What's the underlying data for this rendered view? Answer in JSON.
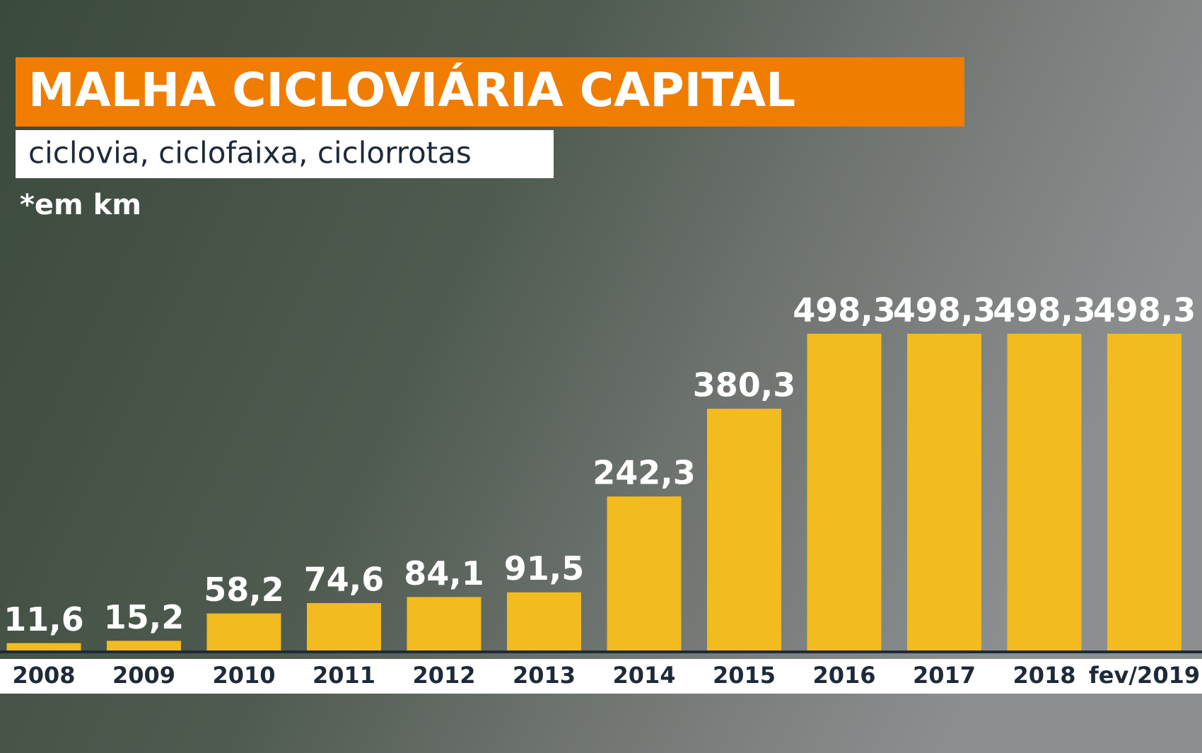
{
  "chart_data": {
    "type": "bar",
    "title": "MALHA CICLOVIÁRIA CAPITAL",
    "subtitle": "ciclovia, ciclofaixa, ciclorrotas",
    "note": "*em km",
    "categories": [
      "2008",
      "2009",
      "2010",
      "2011",
      "2012",
      "2013",
      "2014",
      "2015",
      "2016",
      "2017",
      "2018",
      "fev/2019"
    ],
    "values": [
      11.6,
      15.2,
      58.2,
      74.6,
      84.1,
      91.5,
      242.3,
      380.3,
      498.3,
      498.3,
      498.3,
      498.3
    ],
    "value_labels": [
      "11,6",
      "15,2",
      "58,2",
      "74,6",
      "84,1",
      "91,5",
      "242,3",
      "380,3",
      "498,3",
      "498,3",
      "498,3",
      "498,3"
    ],
    "color": "#f2bb1f"
  }
}
